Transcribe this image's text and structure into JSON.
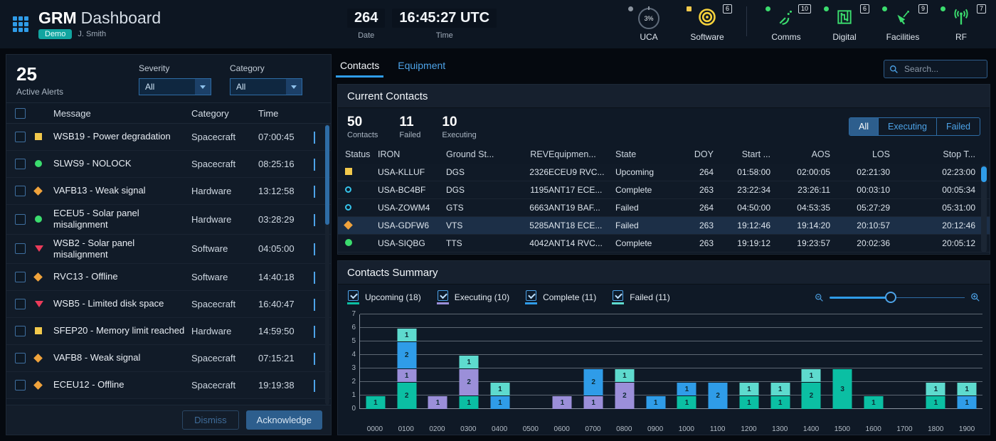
{
  "colors": {
    "accent_blue": "#2f9ce8",
    "teal_badge": "#12a5a0",
    "status_green": "#3bdc6e",
    "warning_yellow": "#f2c94c",
    "caution_orange": "#f0a33c",
    "critical_red": "#eb3b5a"
  },
  "header": {
    "app_name": "GRM",
    "app_subtitle": "Dashboard",
    "mode_badge": "Demo",
    "user": "J. Smith",
    "date": {
      "value": "264",
      "label": "Date"
    },
    "time": {
      "value": "16:45:27 UTC",
      "label": "Time"
    },
    "status_items": [
      {
        "label": "UCA",
        "value": "3%",
        "badge": "",
        "icon": "uca",
        "dot": "gray"
      },
      {
        "label": "Software",
        "badge": "6",
        "icon": "software",
        "dot": "yellow-square"
      },
      {
        "label": "Comms",
        "badge": "10",
        "icon": "comms",
        "dot": "green"
      },
      {
        "label": "Digital",
        "badge": "6",
        "icon": "digital",
        "dot": "green"
      },
      {
        "label": "Facilities",
        "badge": "9",
        "icon": "facilities",
        "dot": "green"
      },
      {
        "label": "RF",
        "badge": "7",
        "icon": "rf",
        "dot": "green"
      }
    ]
  },
  "alerts": {
    "count": "25",
    "count_label": "Active Alerts",
    "severity_label": "Severity",
    "severity_value": "All",
    "category_label": "Category",
    "category_value": "All",
    "columns": {
      "message": "Message",
      "category": "Category",
      "time": "Time"
    },
    "rows": [
      {
        "severity": "square-yellow",
        "message": "WSB19 - Power degradation",
        "category": "Spacecraft",
        "time": "07:00:45"
      },
      {
        "severity": "circle-green",
        "message": "SLWS9 - NOLOCK",
        "category": "Spacecraft",
        "time": "08:25:16"
      },
      {
        "severity": "diamond-orange",
        "message": "VAFB13 - Weak signal",
        "category": "Hardware",
        "time": "13:12:58"
      },
      {
        "severity": "circle-green",
        "message": "ECEU5 - Solar panel misalignment",
        "category": "Hardware",
        "time": "03:28:29"
      },
      {
        "severity": "triangle-red",
        "message": "WSB2 - Solar panel misalignment",
        "category": "Software",
        "time": "04:05:00"
      },
      {
        "severity": "diamond-orange",
        "message": "RVC13 - Offline",
        "category": "Software",
        "time": "14:40:18"
      },
      {
        "severity": "triangle-red",
        "message": "WSB5 - Limited disk space",
        "category": "Spacecraft",
        "time": "16:40:47"
      },
      {
        "severity": "square-yellow",
        "message": "SFEP20 - Memory limit reached",
        "category": "Hardware",
        "time": "14:59:50"
      },
      {
        "severity": "diamond-orange",
        "message": "VAFB8 - Weak signal",
        "category": "Spacecraft",
        "time": "07:15:21"
      },
      {
        "severity": "diamond-orange",
        "message": "ECEU12 - Offline",
        "category": "Spacecraft",
        "time": "19:19:38"
      }
    ],
    "dismiss_label": "Dismiss",
    "acknowledge_label": "Acknowledge"
  },
  "tabs": {
    "items": [
      {
        "label": "Contacts",
        "active": true
      },
      {
        "label": "Equipment",
        "active": false
      }
    ],
    "search_placeholder": "Search..."
  },
  "contacts": {
    "title": "Current Contacts",
    "stats": [
      {
        "value": "50",
        "label": "Contacts"
      },
      {
        "value": "11",
        "label": "Failed"
      },
      {
        "value": "10",
        "label": "Executing"
      }
    ],
    "filters": [
      {
        "label": "All",
        "active": true
      },
      {
        "label": "Executing",
        "active": false
      },
      {
        "label": "Failed",
        "active": false
      }
    ],
    "columns": [
      "Status",
      "IRON",
      "Ground St...",
      "REV",
      "Equipmen...",
      "State",
      "DOY",
      "Start ...",
      "AOS",
      "LOS",
      "Stop T..."
    ],
    "rows": [
      {
        "status": "square-yellow",
        "iron": "USA-KLLUF",
        "ground": "DGS",
        "rev": "2326",
        "equipment": "ECEU9 RVC...",
        "state": "Upcoming",
        "doy": "264",
        "start": "01:58:00",
        "aos": "02:00:05",
        "los": "02:21:30",
        "stop": "02:23:00",
        "selected": false
      },
      {
        "status": "ring-cyan",
        "iron": "USA-BC4BF",
        "ground": "DGS",
        "rev": "1195",
        "equipment": "ANT17 ECE...",
        "state": "Complete",
        "doy": "263",
        "start": "23:22:34",
        "aos": "23:26:11",
        "los": "00:03:10",
        "stop": "00:05:34",
        "selected": false
      },
      {
        "status": "ring-cyan",
        "iron": "USA-ZOWM4",
        "ground": "GTS",
        "rev": "6663",
        "equipment": "ANT19 BAF...",
        "state": "Failed",
        "doy": "264",
        "start": "04:50:00",
        "aos": "04:53:35",
        "los": "05:27:29",
        "stop": "05:31:00",
        "selected": false
      },
      {
        "status": "diamond-orange",
        "iron": "USA-GDFW6",
        "ground": "VTS",
        "rev": "5285",
        "equipment": "ANT18 ECE...",
        "state": "Failed",
        "doy": "263",
        "start": "19:12:46",
        "aos": "19:14:20",
        "los": "20:10:57",
        "stop": "20:12:46",
        "selected": true
      },
      {
        "status": "circle-green",
        "iron": "USA-SIQBG",
        "ground": "TTS",
        "rev": "4042",
        "equipment": "ANT14 RVC...",
        "state": "Complete",
        "doy": "263",
        "start": "19:19:12",
        "aos": "19:23:57",
        "los": "20:02:36",
        "stop": "20:05:12",
        "selected": false
      }
    ]
  },
  "summary": {
    "title": "Contacts Summary",
    "legend": [
      {
        "label": "Upcoming (18)",
        "color": "#0bbfa3"
      },
      {
        "label": "Executing (10)",
        "color": "#9b8fd9"
      },
      {
        "label": "Complete (11)",
        "color": "#2f9ce8"
      },
      {
        "label": "Failed (11)",
        "color": "#5edace"
      }
    ],
    "zoom_position_pct": 45
  },
  "chart_data": {
    "type": "bar",
    "stacked": true,
    "title": "Contacts Summary",
    "xlabel": "",
    "ylabel": "",
    "ylim": [
      0,
      7
    ],
    "yticks": [
      0,
      1,
      2,
      3,
      4,
      5,
      6,
      7
    ],
    "grid": true,
    "legend_position": "top-left",
    "categories": [
      "0000",
      "0100",
      "0200",
      "0300",
      "0400",
      "0500",
      "0600",
      "0700",
      "0800",
      "0900",
      "1000",
      "1100",
      "1200",
      "1300",
      "1400",
      "1500",
      "1600",
      "1700",
      "1800",
      "1900"
    ],
    "series": [
      {
        "name": "Upcoming",
        "color": "#0bbfa3",
        "values": [
          1,
          2,
          0,
          1,
          0,
          0,
          0,
          0,
          0,
          0,
          1,
          0,
          1,
          1,
          2,
          3,
          1,
          0,
          1,
          0
        ]
      },
      {
        "name": "Executing",
        "color": "#9b8fd9",
        "values": [
          0,
          1,
          1,
          2,
          0,
          0,
          1,
          1,
          2,
          0,
          0,
          0,
          0,
          0,
          0,
          0,
          0,
          0,
          0,
          0
        ]
      },
      {
        "name": "Complete",
        "color": "#2f9ce8",
        "values": [
          0,
          2,
          0,
          0,
          1,
          0,
          0,
          2,
          0,
          1,
          1,
          2,
          0,
          0,
          0,
          0,
          0,
          0,
          0,
          1
        ]
      },
      {
        "name": "Failed",
        "color": "#5edace",
        "values": [
          0,
          1,
          0,
          1,
          1,
          0,
          0,
          0,
          1,
          0,
          0,
          0,
          1,
          1,
          1,
          0,
          0,
          0,
          1,
          1
        ]
      }
    ]
  }
}
